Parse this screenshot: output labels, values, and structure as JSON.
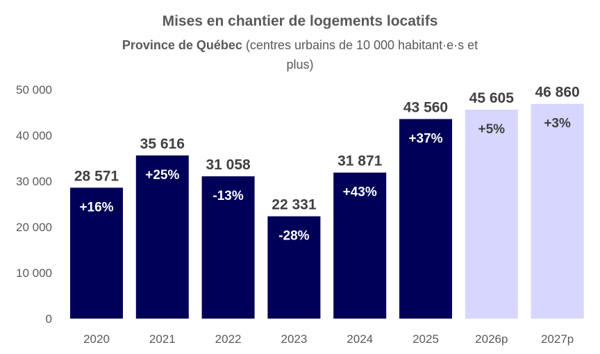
{
  "chart_data": {
    "type": "bar",
    "title": "Mises en chantier de logements locatifs",
    "subtitle_bold": "Province de Québec",
    "subtitle_line1": " (centres urbains de 10 000 habitant·e·s et",
    "subtitle_line2": "plus)",
    "xlabel": "",
    "ylabel": "",
    "ylim": [
      0,
      50000
    ],
    "yticks": [
      0,
      10000,
      20000,
      30000,
      40000,
      50000
    ],
    "ytick_labels": [
      "0",
      "10 000",
      "20 000",
      "30 000",
      "40 000",
      "50 000"
    ],
    "grid": false,
    "legend": "none",
    "categories": [
      "2020",
      "2021",
      "2022",
      "2023",
      "2024",
      "2025",
      "2026p",
      "2027p"
    ],
    "values": [
      28571,
      35616,
      31058,
      22331,
      31871,
      43560,
      45605,
      46860
    ],
    "value_labels": [
      "28 571",
      "35 616",
      "31 058",
      "22 331",
      "31 871",
      "43 560",
      "45 605",
      "46 860"
    ],
    "change_labels": [
      "+16%",
      "+25%",
      "-13%",
      "-28%",
      "+43%",
      "+37%",
      "+5%",
      "+3%"
    ],
    "projected": [
      false,
      false,
      false,
      false,
      false,
      false,
      true,
      true
    ],
    "colors": {
      "actual": "#000058",
      "projected": "#d6d6ff",
      "actual_label": "#ffffff",
      "projected_label": "#404040"
    }
  }
}
